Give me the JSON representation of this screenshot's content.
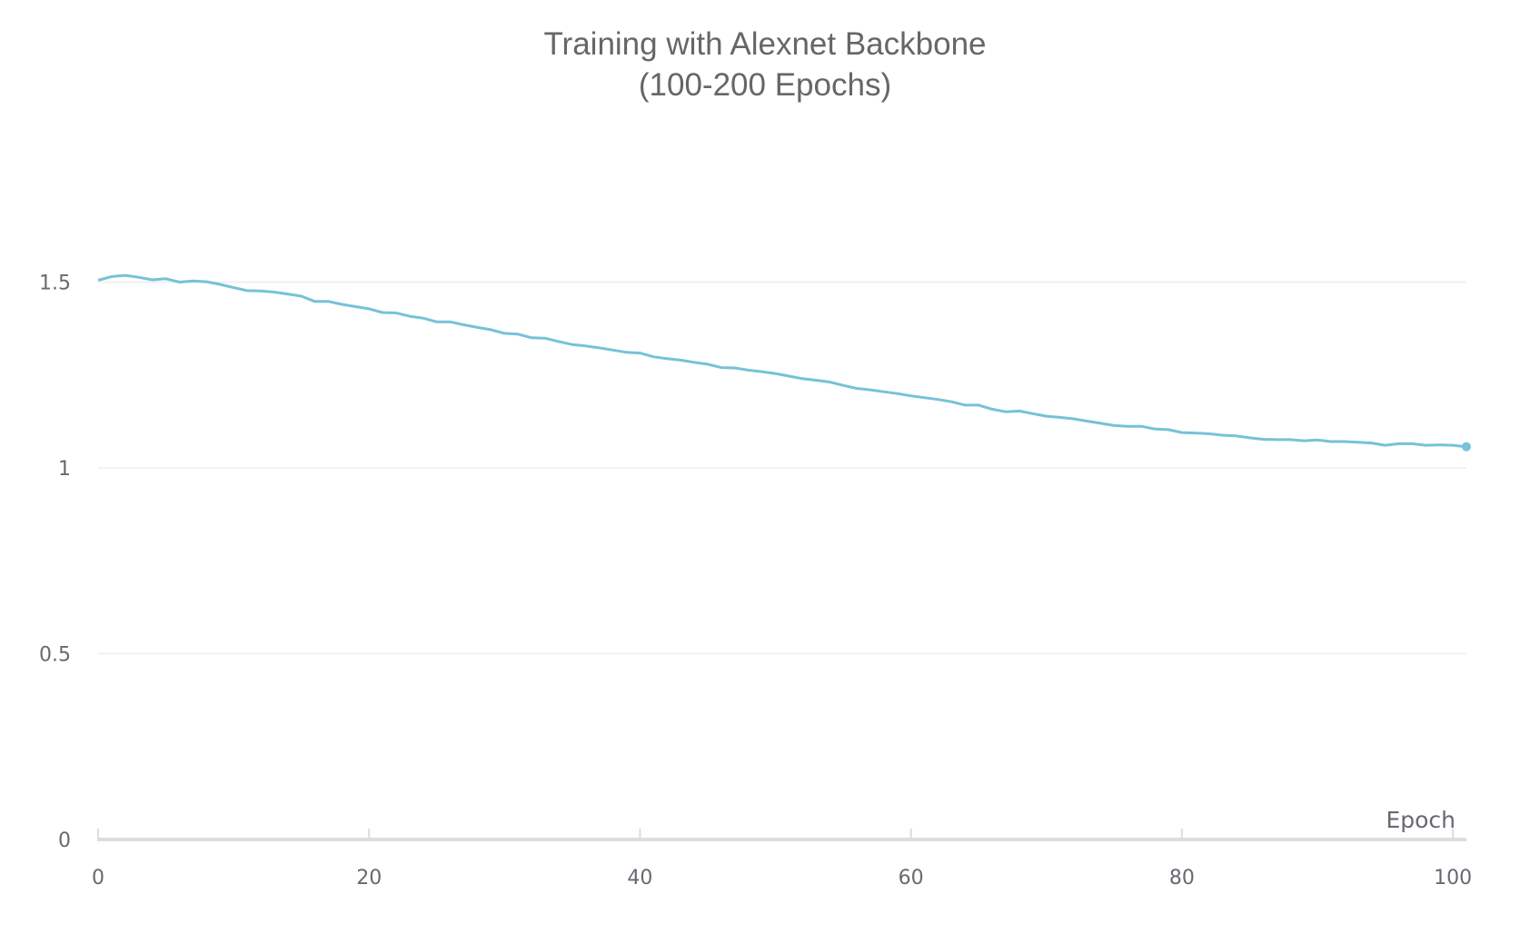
{
  "chart_data": {
    "type": "line",
    "title": [
      "Training with Alexnet Backbone",
      "(100-200 Epochs)"
    ],
    "xlabel": "Epoch",
    "ylabel": "",
    "xlim": [
      0,
      101
    ],
    "ylim": [
      0,
      1.75
    ],
    "x_ticks": [
      0,
      20,
      40,
      60,
      80,
      100
    ],
    "y_ticks": [
      0,
      0.5,
      1,
      1.5
    ],
    "x_tick_labels": [
      "0",
      "20",
      "40",
      "60",
      "80",
      "100"
    ],
    "y_tick_labels": [
      "0",
      "0.5",
      "1",
      "1.5"
    ],
    "grid": true,
    "line_color": "#76c2d6",
    "grid_color": "#eeeeee",
    "axis_color": "#dddddd",
    "series": [
      {
        "values": [
          1.505,
          1.515,
          1.518,
          1.513,
          1.506,
          1.509,
          1.5,
          1.503,
          1.501,
          1.494,
          1.485,
          1.477,
          1.476,
          1.473,
          1.468,
          1.462,
          1.448,
          1.448,
          1.44,
          1.434,
          1.428,
          1.418,
          1.417,
          1.408,
          1.403,
          1.393,
          1.393,
          1.385,
          1.378,
          1.372,
          1.362,
          1.36,
          1.35,
          1.349,
          1.34,
          1.332,
          1.328,
          1.323,
          1.317,
          1.311,
          1.309,
          1.299,
          1.294,
          1.29,
          1.284,
          1.279,
          1.27,
          1.269,
          1.263,
          1.259,
          1.254,
          1.247,
          1.24,
          1.236,
          1.231,
          1.222,
          1.214,
          1.21,
          1.205,
          1.2,
          1.194,
          1.189,
          1.184,
          1.178,
          1.169,
          1.169,
          1.158,
          1.151,
          1.153,
          1.146,
          1.139,
          1.136,
          1.132,
          1.126,
          1.12,
          1.114,
          1.112,
          1.112,
          1.105,
          1.103,
          1.095,
          1.094,
          1.092,
          1.088,
          1.086,
          1.081,
          1.077,
          1.076,
          1.076,
          1.073,
          1.075,
          1.071,
          1.071,
          1.069,
          1.067,
          1.061,
          1.065,
          1.065,
          1.061,
          1.062,
          1.061,
          1.057
        ]
      }
    ]
  }
}
